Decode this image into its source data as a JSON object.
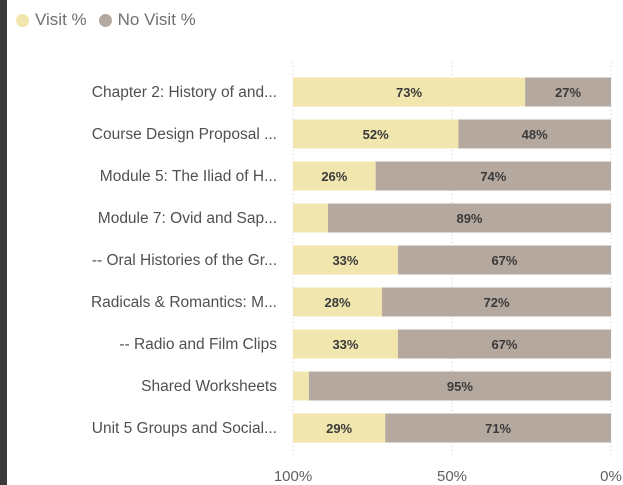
{
  "colors": {
    "visit": "#f0e6ae",
    "no_visit": "#b5a89f",
    "text": "#505050"
  },
  "legend": [
    {
      "label": "Visit %",
      "color": "#f0e6ae"
    },
    {
      "label": "No Visit %",
      "color": "#b5a89f"
    }
  ],
  "chart_data": {
    "type": "bar",
    "orientation": "horizontal",
    "stacked": "100%",
    "categories": [
      "Chapter 2: History of and...",
      "Course Design Proposal ...",
      "Module 5: The Iliad of H...",
      "Module 7: Ovid and Sap...",
      "-- Oral Histories of the Gr...",
      "Radicals & Romantics: M...",
      "-- Radio and Film Clips",
      "Shared Worksheets",
      "Unit 5 Groups and Social..."
    ],
    "series": [
      {
        "name": "Visit %",
        "values": [
          73,
          52,
          26,
          11,
          33,
          28,
          33,
          5,
          29
        ],
        "labels": [
          "73%",
          "52%",
          "26%",
          "",
          "33%",
          "28%",
          "33%",
          "",
          "29%"
        ]
      },
      {
        "name": "No Visit %",
        "values": [
          27,
          48,
          74,
          89,
          67,
          72,
          67,
          95,
          71
        ],
        "labels": [
          "27%",
          "48%",
          "74%",
          "89%",
          "67%",
          "72%",
          "67%",
          "95%",
          "71%"
        ]
      }
    ],
    "x_ticks": [
      "100%",
      "50%",
      "0%"
    ],
    "xlim": [
      100,
      0
    ],
    "grid": true,
    "legend_position": "top-left"
  }
}
